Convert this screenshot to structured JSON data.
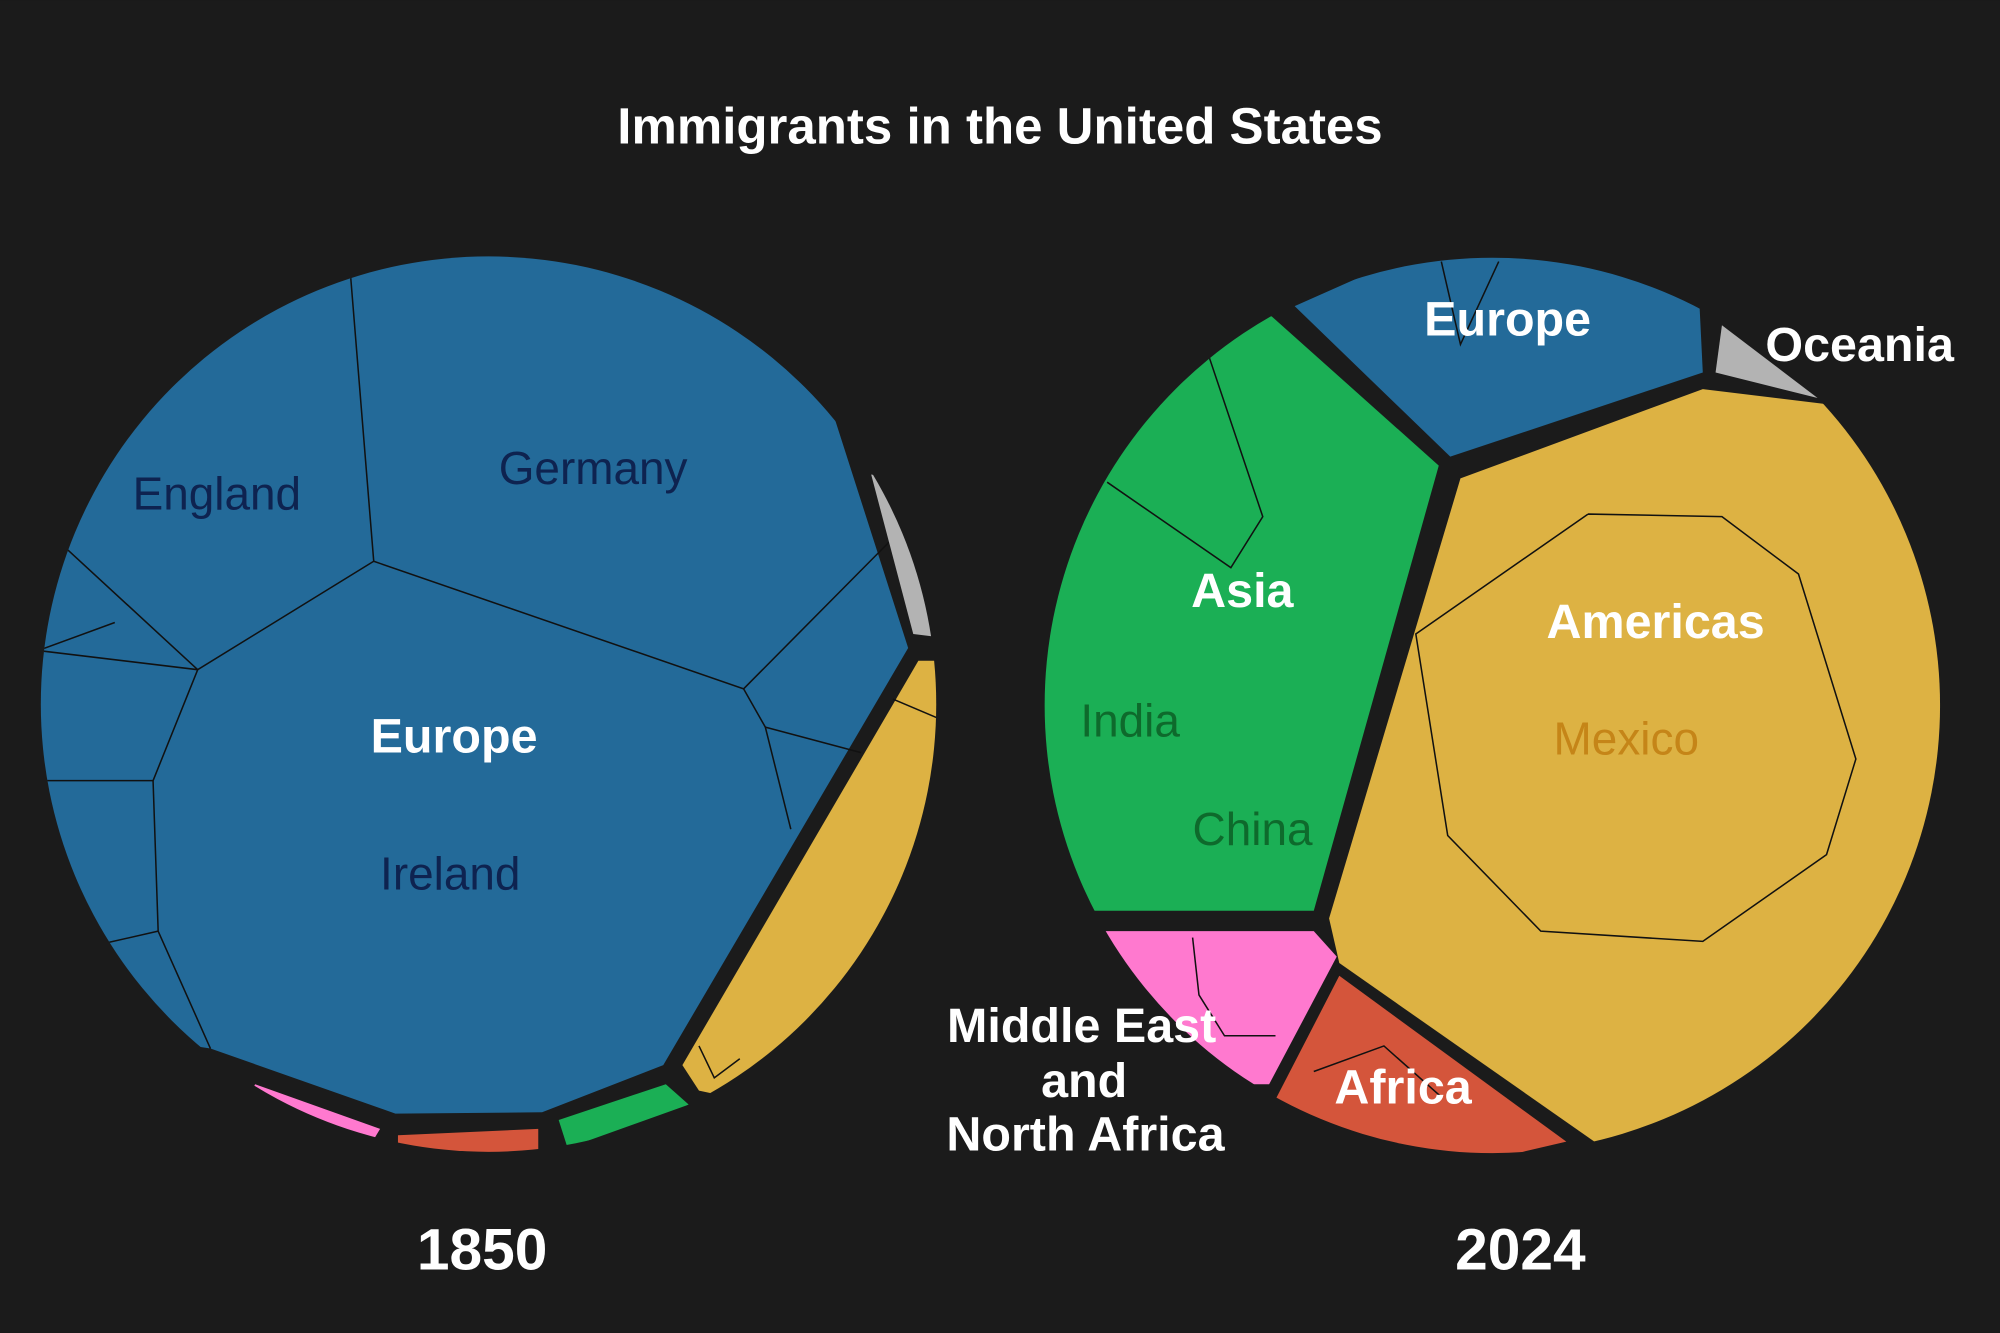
{
  "title": "Immigrants in the United States",
  "panels": [
    {
      "year": "1850",
      "regions": [
        {
          "label": "Europe",
          "countries": [
            "England",
            "Germany",
            "Ireland"
          ]
        }
      ]
    },
    {
      "year": "2024",
      "regions": [
        {
          "label": "Europe"
        },
        {
          "label": "Oceania"
        },
        {
          "label": "Asia",
          "countries": [
            "India",
            "China"
          ]
        },
        {
          "label": "Americas",
          "countries": [
            "Mexico"
          ]
        },
        {
          "label_lines": [
            "Middle East",
            "and",
            "North Africa"
          ]
        },
        {
          "label": "Africa"
        }
      ]
    }
  ]
}
